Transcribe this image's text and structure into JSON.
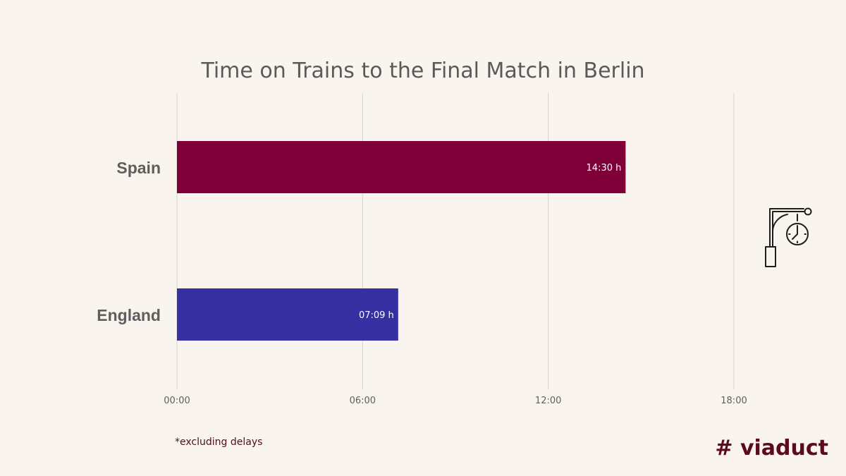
{
  "chart_data": {
    "type": "bar",
    "orientation": "horizontal",
    "title": "Time on Trains to the Final Match in Berlin",
    "categories": [
      "Spain",
      "England"
    ],
    "values": [
      14.5,
      7.15
    ],
    "value_labels": [
      "14:30 h",
      "07:09 h"
    ],
    "colors": [
      "#7f0038",
      "#3730a3"
    ],
    "xticks": [
      "00:00",
      "06:00",
      "12:00",
      "18:00"
    ],
    "xlim": [
      0,
      18
    ],
    "grid": true
  },
  "footnote": "*excluding delays",
  "brand": "# viaduct",
  "icon": "station-clock-icon"
}
